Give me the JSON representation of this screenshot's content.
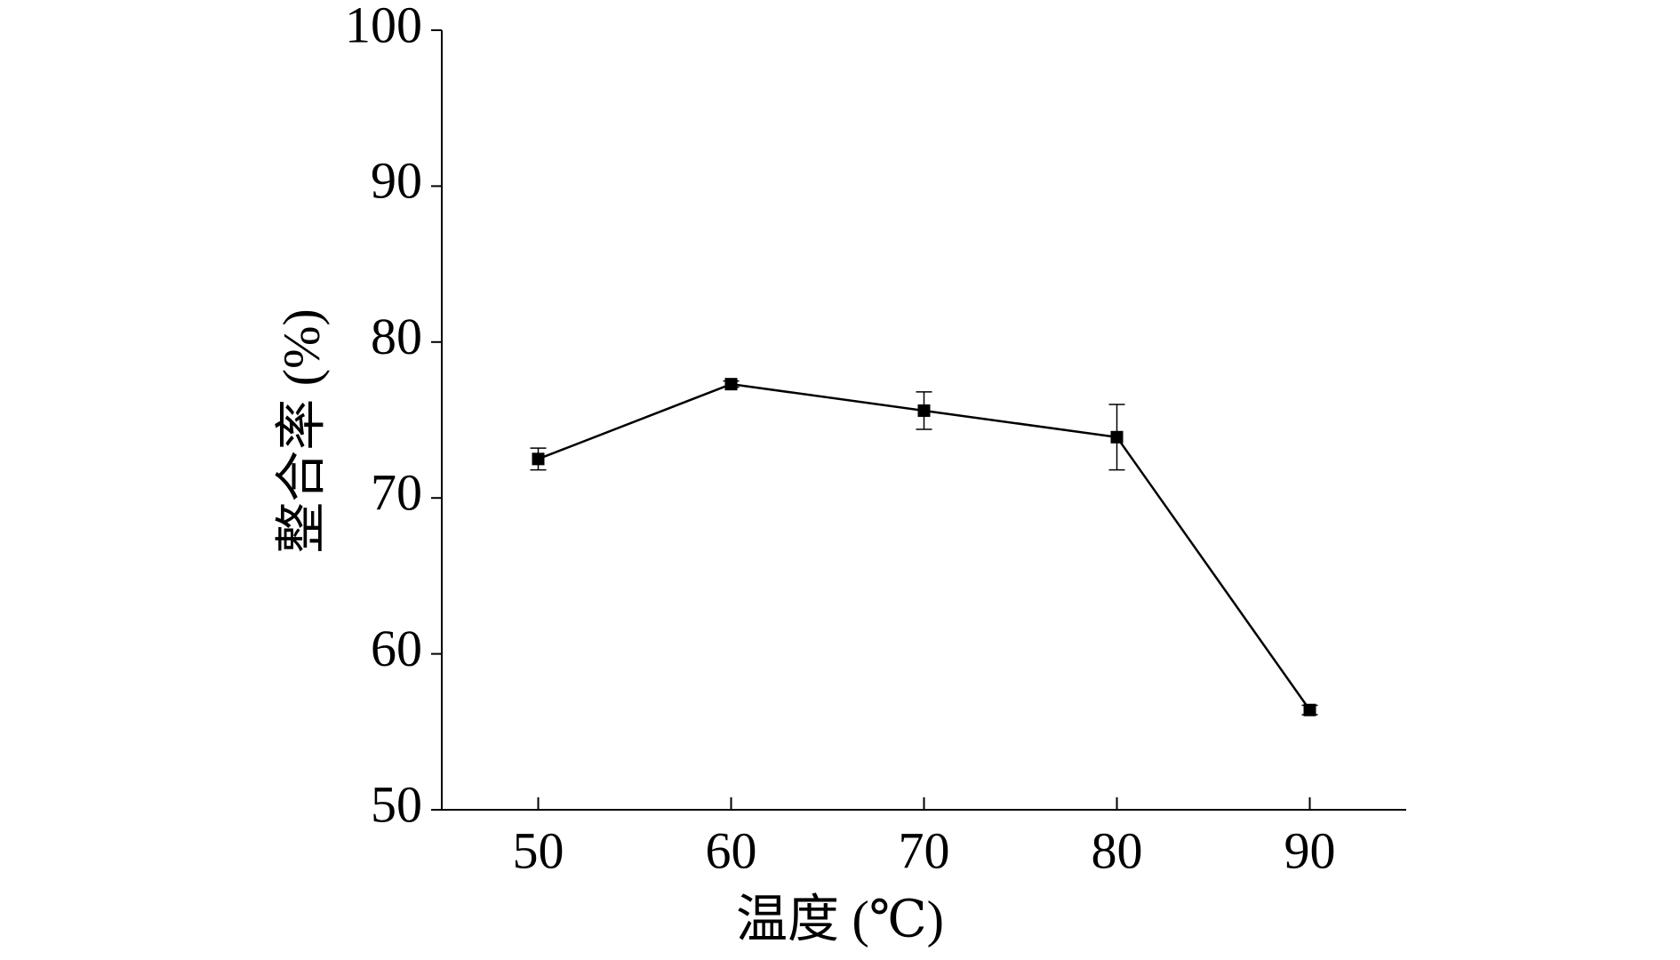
{
  "chart_data": {
    "type": "line",
    "x_label": "温度 (℃)",
    "y_label": "整合率 (%)",
    "x": [
      50,
      60,
      70,
      80,
      90
    ],
    "series": [
      {
        "color": "#000000",
        "values": [
          72.5,
          77.3,
          75.6,
          73.9,
          56.4
        ],
        "errors": [
          0.7,
          0.2,
          1.2,
          2.1,
          0.3
        ]
      }
    ],
    "xlim": [
      45,
      95
    ],
    "xticks": [
      50,
      60,
      70,
      80,
      90
    ],
    "ylim": [
      50,
      100
    ],
    "yticks": [
      50,
      60,
      70,
      80,
      90,
      100
    ],
    "grid": false
  }
}
